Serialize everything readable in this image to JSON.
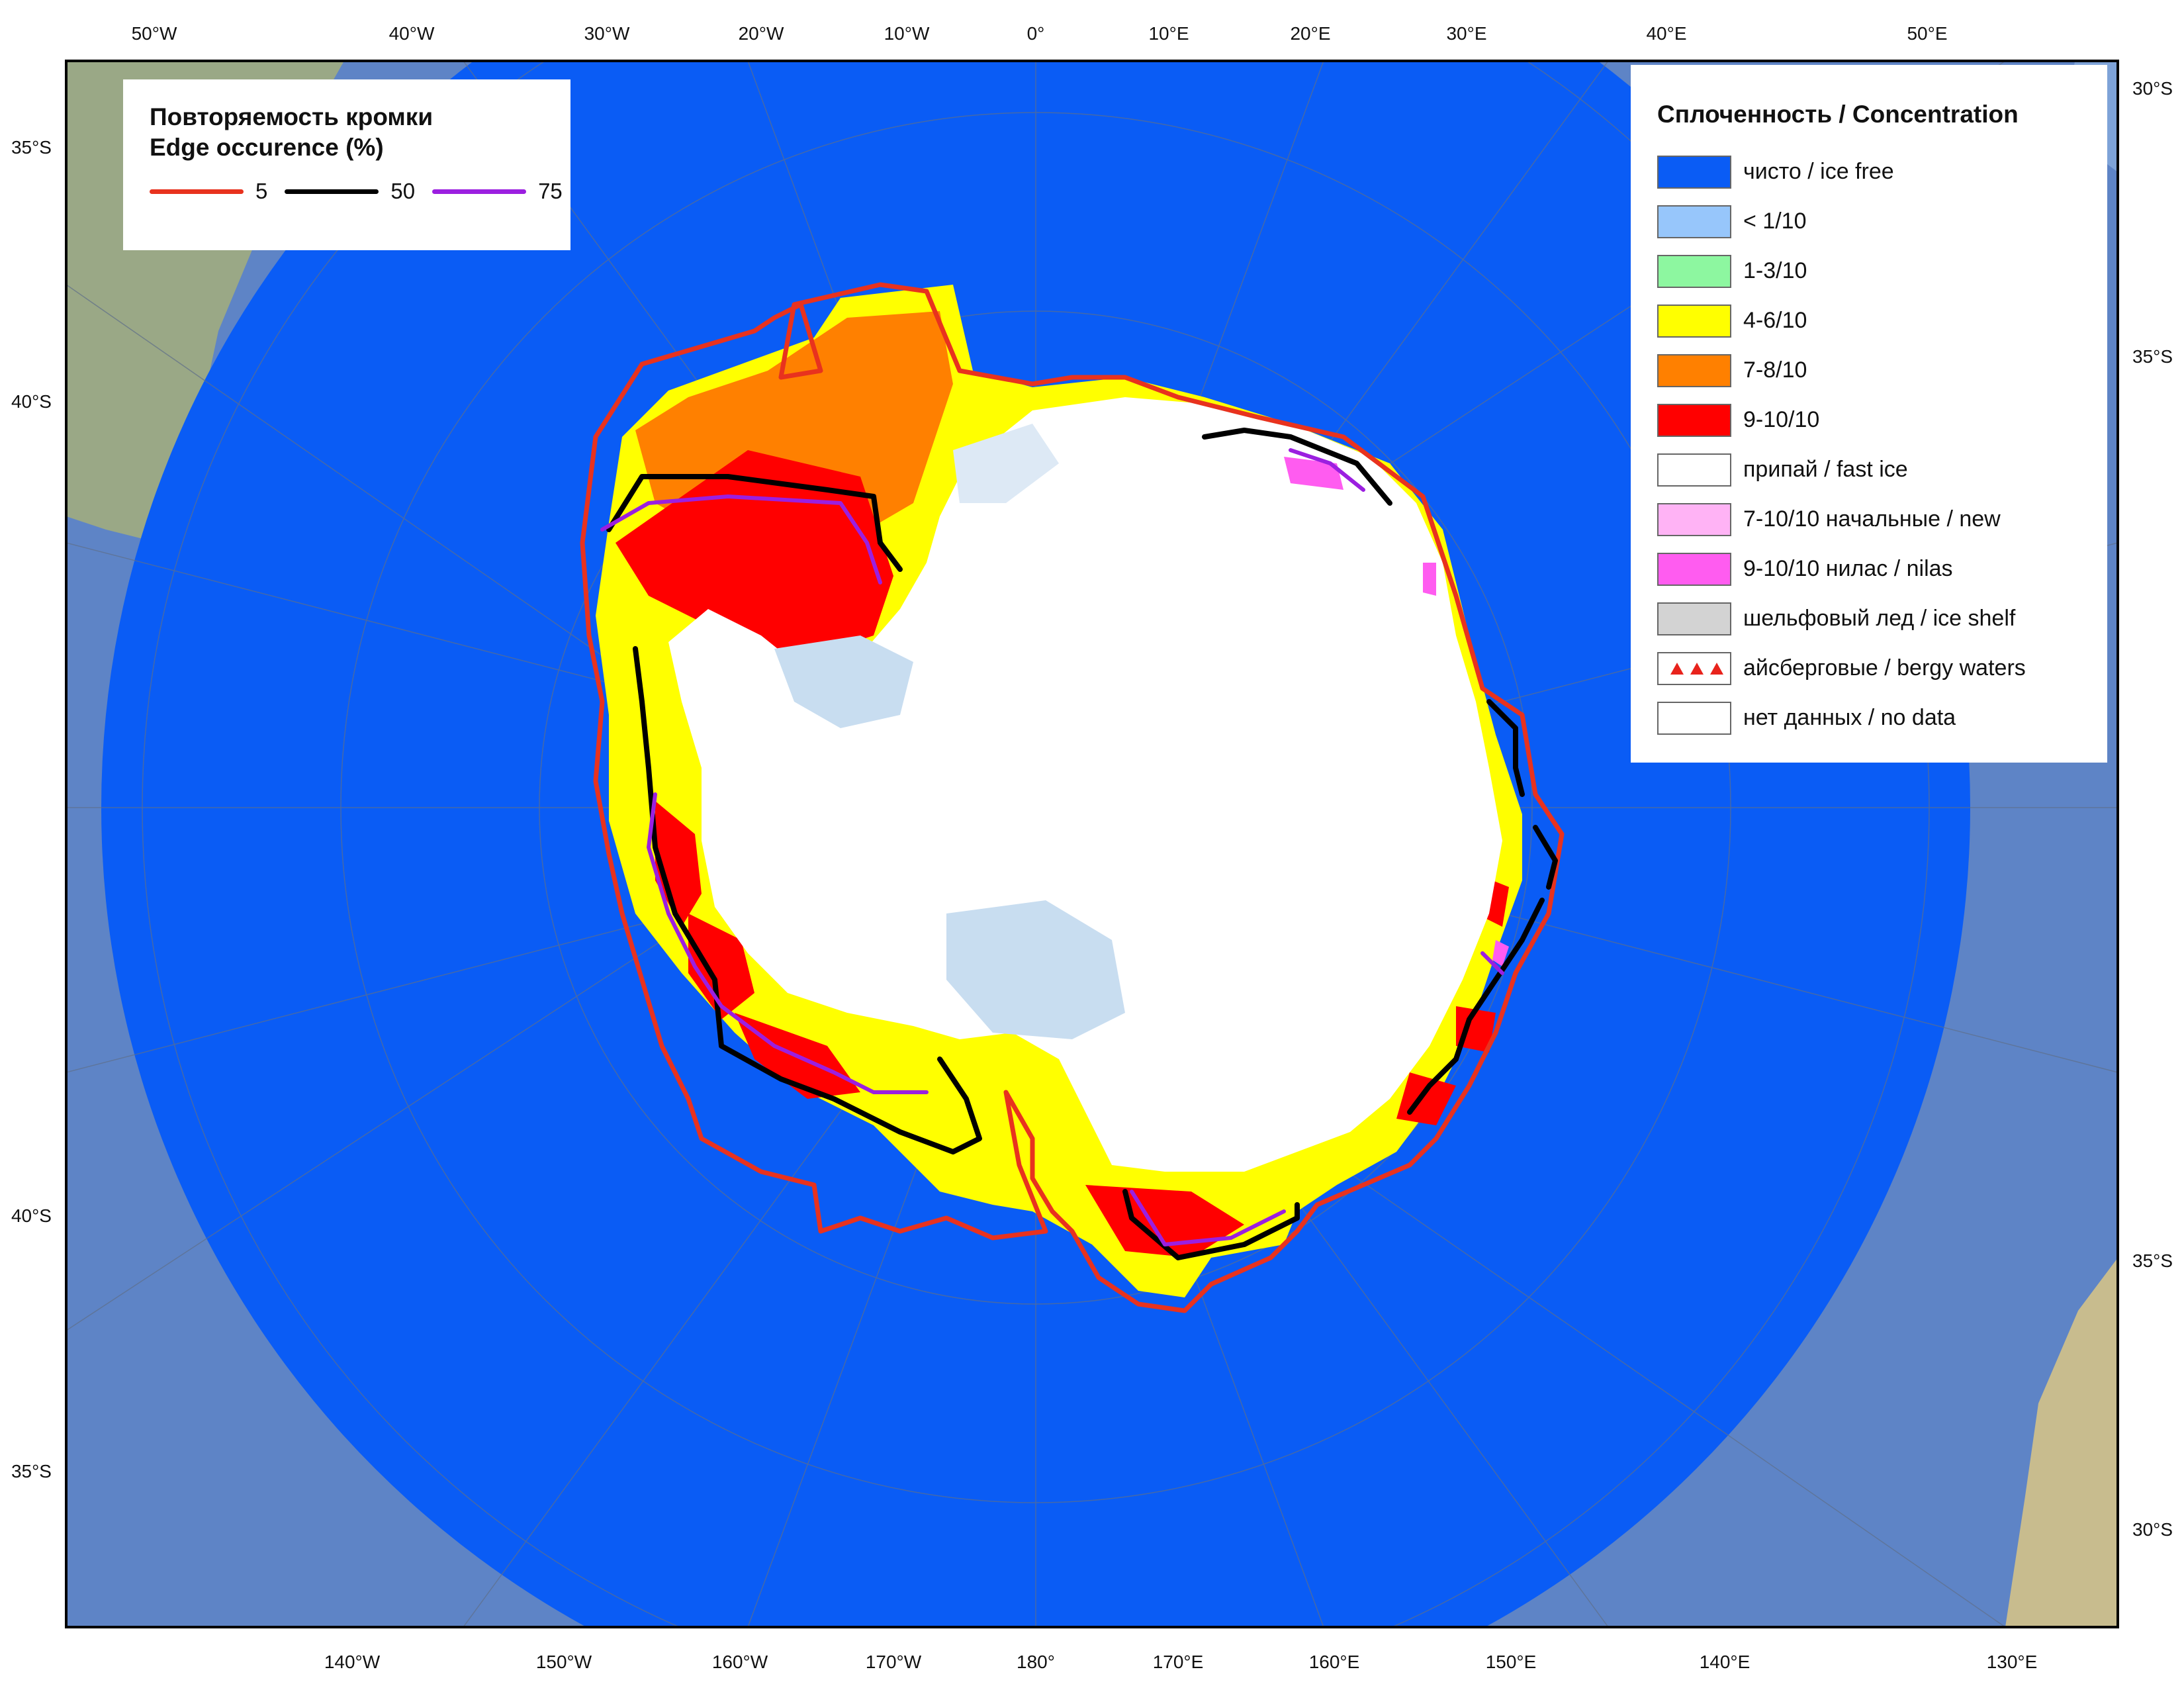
{
  "map": {
    "top_lon_labels": [
      "50°W",
      "40°W",
      "30°W",
      "20°W",
      "10°W",
      "0°",
      "10°E",
      "20°E",
      "30°E",
      "40°E",
      "50°E"
    ],
    "bottom_lon_labels": [
      "140°W",
      "150°W",
      "160°W",
      "170°W",
      "180°",
      "170°E",
      "160°E",
      "150°E",
      "140°E",
      "130°E"
    ],
    "left_lat_labels": [
      "35°S",
      "40°S",
      "40°S",
      "35°S"
    ],
    "right_lat_labels": [
      "30°S",
      "35°S",
      "35°S",
      "30°S"
    ]
  },
  "edge_legend": {
    "title_line1": "Повторяемость кромки",
    "title_line2": "Edge occurence (%)",
    "items": [
      {
        "label": "5",
        "color": "#e8321e"
      },
      {
        "label": "50",
        "color": "#000000"
      },
      {
        "label": "75",
        "color": "#9b1fe0"
      }
    ]
  },
  "concentration_legend": {
    "title": "Сплоченность / Concentration",
    "items": [
      {
        "label": "чисто / ice free",
        "color": "#0a5cf5",
        "icon": "solid"
      },
      {
        "label": "< 1/10",
        "color": "#97c6fb",
        "icon": "solid"
      },
      {
        "label": "1-3/10",
        "color": "#8df7a0",
        "icon": "solid"
      },
      {
        "label": "4-6/10",
        "color": "#ffff00",
        "icon": "solid"
      },
      {
        "label": "7-8/10",
        "color": "#ff8000",
        "icon": "solid"
      },
      {
        "label": "9-10/10",
        "color": "#ff0000",
        "icon": "solid"
      },
      {
        "label": "припай / fast ice",
        "color": "#ffffff",
        "icon": "hatch"
      },
      {
        "label": "7-10/10 начальные / new",
        "color": "#ffb3f5",
        "icon": "solid"
      },
      {
        "label": "9-10/10 нилас / nilas",
        "color": "#ff5cf0",
        "icon": "solid"
      },
      {
        "label": "шельфовый лед / ice shelf",
        "color": "#d3d3d3",
        "icon": "solid"
      },
      {
        "label": "айсберговые / bergy waters",
        "color": "#ffffff",
        "icon": "triangles"
      },
      {
        "label": "нет данных / no data",
        "color": "#ffffff",
        "icon": "solid"
      }
    ]
  }
}
